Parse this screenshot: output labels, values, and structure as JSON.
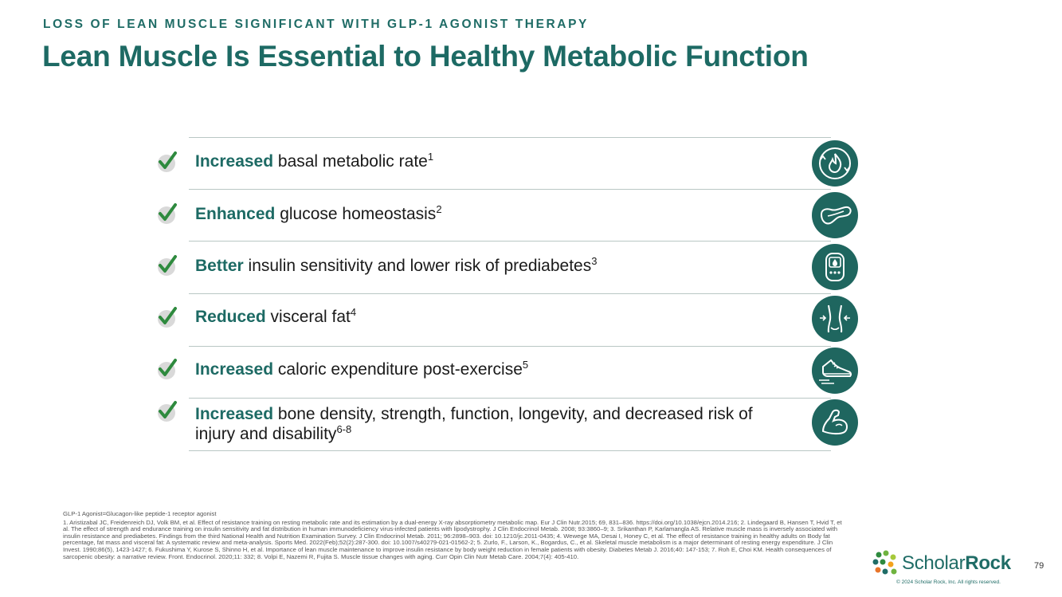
{
  "header": {
    "eyebrow": "LOSS OF LEAN MUSCLE SIGNIFICANT WITH GLP-1 AGONIST THERAPY",
    "title": "Lean Muscle Is Essential to Healthy Metabolic Function"
  },
  "benefits": [
    {
      "highlight": "Increased",
      "text": " basal metabolic rate",
      "ref": "1",
      "icon": "metabolism-flame-icon"
    },
    {
      "highlight": "Enhanced",
      "text": " glucose homeostasis",
      "ref": "2",
      "icon": "pancreas-icon"
    },
    {
      "highlight": "Better",
      "text": " insulin sensitivity and lower risk of prediabetes",
      "ref": "3",
      "icon": "glucose-meter-icon"
    },
    {
      "highlight": "Reduced",
      "text": " visceral fat",
      "ref": "4",
      "icon": "waist-icon"
    },
    {
      "highlight": "Increased",
      "text": " caloric expenditure post-exercise",
      "ref": "5",
      "icon": "running-shoe-icon"
    },
    {
      "highlight": "Increased",
      "text": " bone density, strength, function, longevity, and decreased risk of injury and disability",
      "ref": "6-8",
      "icon": "flexed-arm-icon"
    }
  ],
  "footnotes": {
    "abbreviation": "GLP-1 Agonist=Glucagon-like peptide-1 receptor agonist",
    "references": "1. Aristizabal JC, Freidenreich DJ, Volk BM, et al. Effect of resistance training on resting metabolic rate and its estimation by a dual-energy X-ray absorptiometry metabolic map. Eur J Clin Nutr.2015; 69, 831–836. https://doi.org/10.1038/ejcn.2014.216;  2. Lindegaard B, Hansen T, Hvid T, et al. The effect of strength and endurance training on insulin sensitivity and fat distribution in human immunodeficiency virus-infected patients with lipodystrophy. J Clin Endocrinol Metab. 2008; 93:3860–9;  3. Srikanthan P, Karlamangla AS. Relative muscle mass is inversely associated with insulin resistance and prediabetes. Findings from the third National Health and Nutrition Examination Survey. J Clin Endocrinol Metab. 2011; 96:2898–903. doi: 10.1210/jc.2011-0435;  4. Wewege MA, Desai I, Honey C, et al. The effect of resistance training in healthy adults on Body fat percentage, fat mass and visceral fat: A systematic review and meta-analysis. Sports Med. 2022(Feb);52(2):287-300. doi: 10.1007/s40279-021-01562-2;  5. Zurlo, F., Larson, K., Bogardus, C., et al. Skeletal muscle metabolism is a major determinant of resting energy expenditure. J Clin Invest. 1990;86(5), 1423-1427;  6. Fukushima Y, Kurose S, Shinno H, et al. Importance of lean muscle maintenance to improve insulin resistance by body weight reduction in female patients with obesity. Diabetes Metab J. 2016;40: 147-153;  7. Roh E, Choi KM. Health consequences of sarcopenic obesity: a narrative review. Front. Endocrinol. 2020;11: 332;  8. Volpi E, Nazemi R, Fujita S. Muscle tissue changes with aging. Curr Opin Clin Nutr Metab Care. 2004;7(4): 405-410."
  },
  "brand": {
    "name_part1": "Scholar",
    "name_part2": "Rock",
    "copyright": "© 2024 Scholar Rock, Inc. All rights reserved.",
    "primary_color": "#1d6a64",
    "icon_bg_color": "#1f665f",
    "check_color": "#2e8a3e"
  },
  "page_number": "79"
}
